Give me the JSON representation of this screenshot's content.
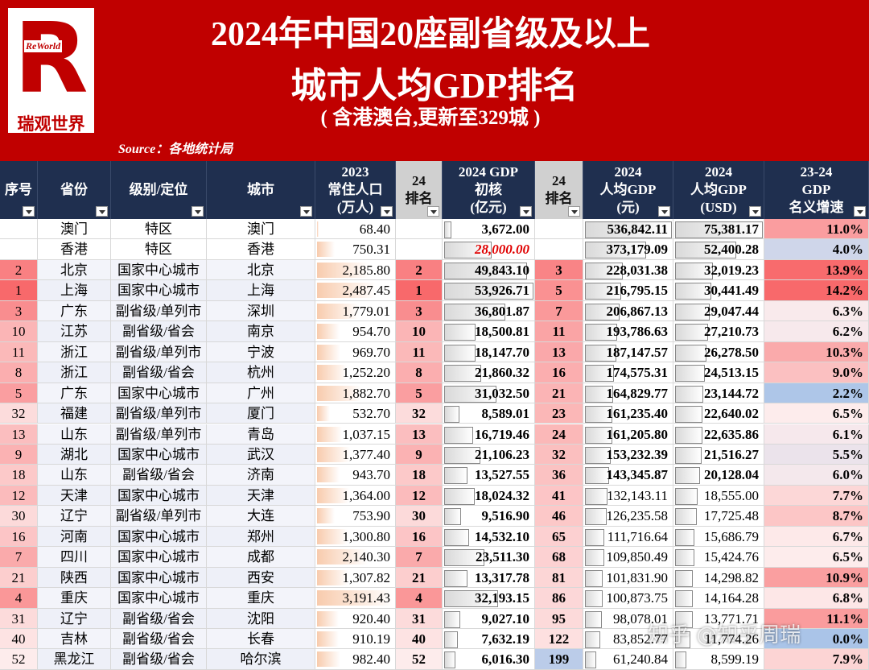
{
  "header": {
    "logo_letter": "R",
    "logo_brand": "ReWorld",
    "logo_name": "瑞观世界",
    "title_line1": "2024年中国20座副省级及以上",
    "title_line2": "城市人均GDP排名",
    "subtitle": "( 含港澳台,更新至329城 )",
    "source": "Source：各地统计局"
  },
  "table": {
    "columns": [
      [
        "序号"
      ],
      [
        "省份"
      ],
      [
        "级别/定位"
      ],
      [
        "城市"
      ],
      [
        "2023",
        "常住人口",
        "(万人)"
      ],
      [
        "24",
        "排名"
      ],
      [
        "2024 GDP",
        "初核",
        "(亿元)"
      ],
      [
        "24",
        "排名"
      ],
      [
        "2024",
        "人均GDP",
        "(元)"
      ],
      [
        "2024",
        "人均GDP",
        "(USD)"
      ],
      [
        "23-24",
        "GDP",
        "名义增速"
      ]
    ],
    "rows": [
      [
        "",
        "澳门",
        "特区",
        "澳门",
        "68.40",
        "",
        "3,672.00",
        "",
        "536,842.11",
        "75,381.17",
        "11.0%"
      ],
      [
        "",
        "香港",
        "特区",
        "香港",
        "750.31",
        "",
        "28,000.00",
        "",
        "373,179.09",
        "52,400.28",
        "4.0%"
      ],
      [
        "2",
        "北京",
        "国家中心城市",
        "北京",
        "2,185.80",
        "2",
        "49,843.10",
        "3",
        "228,031.38",
        "32,019.23",
        "13.9%"
      ],
      [
        "1",
        "上海",
        "国家中心城市",
        "上海",
        "2,487.45",
        "1",
        "53,926.71",
        "5",
        "216,795.15",
        "30,441.49",
        "14.2%"
      ],
      [
        "3",
        "广东",
        "副省级/单列市",
        "深圳",
        "1,779.01",
        "3",
        "36,801.87",
        "7",
        "206,867.13",
        "29,047.44",
        "6.3%"
      ],
      [
        "10",
        "江苏",
        "副省级/省会",
        "南京",
        "954.70",
        "10",
        "18,500.81",
        "11",
        "193,786.63",
        "27,210.73",
        "6.2%"
      ],
      [
        "11",
        "浙江",
        "副省级/单列市",
        "宁波",
        "969.70",
        "11",
        "18,147.70",
        "13",
        "187,147.57",
        "26,278.50",
        "10.3%"
      ],
      [
        "8",
        "浙江",
        "副省级/省会",
        "杭州",
        "1,252.20",
        "8",
        "21,860.32",
        "16",
        "174,575.31",
        "24,513.15",
        "9.0%"
      ],
      [
        "5",
        "广东",
        "国家中心城市",
        "广州",
        "1,882.70",
        "5",
        "31,032.50",
        "21",
        "164,829.77",
        "23,144.72",
        "2.2%"
      ],
      [
        "32",
        "福建",
        "副省级/单列市",
        "厦门",
        "532.70",
        "32",
        "8,589.01",
        "23",
        "161,235.40",
        "22,640.02",
        "6.5%"
      ],
      [
        "13",
        "山东",
        "副省级/单列市",
        "青岛",
        "1,037.15",
        "13",
        "16,719.46",
        "24",
        "161,205.80",
        "22,635.86",
        "6.1%"
      ],
      [
        "9",
        "湖北",
        "国家中心城市",
        "武汉",
        "1,377.40",
        "9",
        "21,106.23",
        "32",
        "153,232.39",
        "21,516.27",
        "5.5%"
      ],
      [
        "18",
        "山东",
        "副省级/省会",
        "济南",
        "943.70",
        "18",
        "13,527.55",
        "36",
        "143,345.87",
        "20,128.04",
        "6.0%"
      ],
      [
        "12",
        "天津",
        "国家中心城市",
        "天津",
        "1,364.00",
        "12",
        "18,024.32",
        "41",
        "132,143.11",
        "18,555.00",
        "7.7%"
      ],
      [
        "30",
        "辽宁",
        "副省级/单列市",
        "大连",
        "753.90",
        "30",
        "9,516.90",
        "46",
        "126,235.58",
        "17,725.48",
        "8.7%"
      ],
      [
        "16",
        "河南",
        "国家中心城市",
        "郑州",
        "1,300.80",
        "16",
        "14,532.10",
        "65",
        "111,716.64",
        "15,686.79",
        "6.7%"
      ],
      [
        "7",
        "四川",
        "国家中心城市",
        "成都",
        "2,140.30",
        "7",
        "23,511.30",
        "68",
        "109,850.49",
        "15,424.76",
        "6.5%"
      ],
      [
        "21",
        "陕西",
        "国家中心城市",
        "西安",
        "1,307.82",
        "21",
        "13,317.78",
        "81",
        "101,831.90",
        "14,298.82",
        "10.9%"
      ],
      [
        "4",
        "重庆",
        "国家中心城市",
        "重庆",
        "3,191.43",
        "4",
        "32,193.15",
        "86",
        "100,873.75",
        "14,164.28",
        "6.8%"
      ],
      [
        "31",
        "辽宁",
        "副省级/省会",
        "沈阳",
        "920.40",
        "31",
        "9,027.10",
        "95",
        "98,078.01",
        "13,771.71",
        "11.1%"
      ],
      [
        "40",
        "吉林",
        "副省级/省会",
        "长春",
        "910.19",
        "40",
        "7,632.19",
        "122",
        "83,852.77",
        "11,774.26",
        "0.0%"
      ],
      [
        "52",
        "黑龙江",
        "副省级/省会",
        "哈尔滨",
        "982.40",
        "52",
        "6,016.30",
        "199",
        "61,240.84",
        "8,599.19",
        "7.9%"
      ]
    ]
  },
  "watermark": "知乎 @知乎周瑞"
}
